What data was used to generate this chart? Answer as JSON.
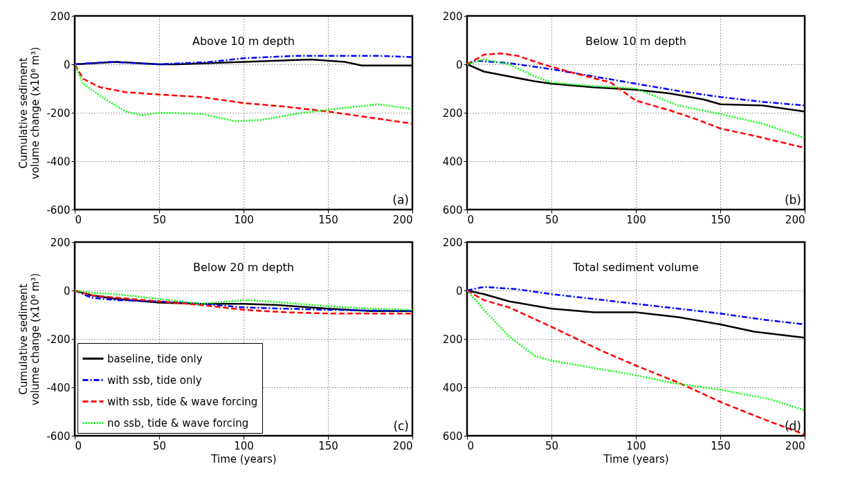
{
  "chart_data": [
    {
      "type": "line",
      "title": "Above 10 m depth",
      "ylabel": "Cumulative sediment volume change (x10⁶ m³)",
      "annotations": [
        "(a)"
      ],
      "xlim": [
        0,
        200
      ],
      "xticks": [
        0,
        50,
        100,
        150,
        200
      ],
      "ylim": [
        -600,
        200
      ],
      "yticks": [
        -600,
        -400,
        -200,
        0,
        200
      ],
      "grid": true,
      "series": [
        {
          "color": "#000000",
          "line_style": "solid",
          "x": [
            0,
            25,
            50,
            60,
            80,
            100,
            120,
            140,
            160,
            170,
            185,
            200
          ],
          "values": [
            0,
            10,
            0,
            0,
            5,
            10,
            15,
            20,
            10,
            -5,
            -5,
            -5
          ]
        },
        {
          "color": "#0000ff",
          "line_style": "dashdot",
          "x": [
            0,
            20,
            50,
            80,
            100,
            130,
            150,
            180,
            200
          ],
          "values": [
            0,
            10,
            0,
            10,
            25,
            35,
            35,
            35,
            30
          ]
        },
        {
          "color": "#ff0000",
          "line_style": "dashed",
          "x": [
            0,
            5,
            15,
            30,
            50,
            75,
            100,
            125,
            150,
            175,
            200
          ],
          "values": [
            0,
            -60,
            -95,
            -115,
            -125,
            -135,
            -160,
            -175,
            -195,
            -220,
            -245
          ]
        },
        {
          "color": "#00ff00",
          "line_style": "dotted",
          "x": [
            0,
            5,
            15,
            30,
            40,
            50,
            75,
            95,
            110,
            135,
            160,
            180,
            190,
            200
          ],
          "values": [
            0,
            -80,
            -130,
            -195,
            -210,
            -200,
            -205,
            -235,
            -230,
            -200,
            -180,
            -165,
            -175,
            -185
          ]
        }
      ]
    },
    {
      "type": "line",
      "title": "Below 10 m depth",
      "annotations": [
        "(b)"
      ],
      "xlim": [
        0,
        200
      ],
      "xticks": [
        0,
        50,
        100,
        150,
        200
      ],
      "ylim": [
        -600,
        200
      ],
      "yticks": [
        {
          "value": -600,
          "label": "600"
        },
        {
          "value": -400,
          "label": "400"
        },
        {
          "value": -200,
          "label": "200"
        },
        0,
        200
      ],
      "grid": true,
      "series": [
        {
          "color": "#000000",
          "line_style": "solid",
          "x": [
            0,
            10,
            25,
            40,
            50,
            75,
            100,
            120,
            140,
            150,
            175,
            200
          ],
          "values": [
            0,
            -30,
            -50,
            -70,
            -80,
            -95,
            -105,
            -120,
            -145,
            -165,
            -170,
            -195
          ]
        },
        {
          "color": "#0000ff",
          "line_style": "dashdot",
          "x": [
            0,
            5,
            25,
            50,
            75,
            100,
            125,
            150,
            175,
            200
          ],
          "values": [
            0,
            15,
            5,
            -20,
            -50,
            -80,
            -110,
            -135,
            -155,
            -170
          ]
        },
        {
          "color": "#ff0000",
          "line_style": "dashed",
          "x": [
            0,
            10,
            20,
            30,
            45,
            60,
            85,
            100,
            120,
            135,
            150,
            170,
            185,
            200
          ],
          "values": [
            0,
            40,
            45,
            35,
            0,
            -30,
            -75,
            -150,
            -190,
            -225,
            -265,
            -295,
            -320,
            -345
          ]
        },
        {
          "color": "#00ff00",
          "line_style": "dotted",
          "x": [
            0,
            10,
            25,
            40,
            50,
            75,
            100,
            125,
            150,
            175,
            200
          ],
          "values": [
            0,
            20,
            0,
            -50,
            -75,
            -90,
            -100,
            -170,
            -205,
            -245,
            -305
          ]
        }
      ]
    },
    {
      "type": "line",
      "title": "Below 20 m depth",
      "xlabel": "Time (years)",
      "ylabel": "Cumulative sediment volume change (x10⁶ m³)",
      "annotations": [
        "(c)"
      ],
      "xlim": [
        0,
        200
      ],
      "xticks": [
        0,
        50,
        100,
        150,
        200
      ],
      "ylim": [
        -600,
        200
      ],
      "yticks": [
        -600,
        -400,
        -200,
        0,
        200
      ],
      "grid": true,
      "legend": "bottom left",
      "series": [
        {
          "name": "baseline, tide only",
          "color": "#000000",
          "line_style": "solid",
          "x": [
            0,
            10,
            25,
            50,
            75,
            100,
            120,
            150,
            175,
            200
          ],
          "values": [
            0,
            -20,
            -35,
            -50,
            -55,
            -55,
            -60,
            -75,
            -85,
            -85
          ]
        },
        {
          "name": "with ssb, tide only",
          "color": "#0000ff",
          "line_style": "dashdot",
          "x": [
            0,
            10,
            25,
            50,
            75,
            100,
            150,
            200
          ],
          "values": [
            0,
            -30,
            -40,
            -45,
            -55,
            -70,
            -80,
            -85
          ]
        },
        {
          "name": "with ssb, tide & wave forcing",
          "color": "#ff0000",
          "line_style": "dashed",
          "x": [
            0,
            10,
            25,
            50,
            75,
            100,
            125,
            150,
            200
          ],
          "values": [
            0,
            -20,
            -30,
            -45,
            -60,
            -80,
            -90,
            -95,
            -95
          ]
        },
        {
          "name": "no ssb, tide & wave forcing",
          "color": "#00ff00",
          "line_style": "dotted",
          "x": [
            0,
            10,
            25,
            50,
            75,
            100,
            115,
            150,
            175,
            200
          ],
          "values": [
            0,
            -10,
            -15,
            -35,
            -55,
            -40,
            -45,
            -65,
            -75,
            -80
          ]
        }
      ]
    },
    {
      "type": "line",
      "title": "Total sediment volume",
      "xlabel": "Time (years)",
      "annotations": [
        "(d)"
      ],
      "xlim": [
        0,
        200
      ],
      "xticks": [
        0,
        50,
        100,
        150,
        200
      ],
      "ylim": [
        -600,
        200
      ],
      "yticks": [
        {
          "value": -600,
          "label": "600"
        },
        {
          "value": -400,
          "label": "400"
        },
        {
          "value": -200,
          "label": "200"
        },
        0,
        200
      ],
      "grid": true,
      "series": [
        {
          "color": "#000000",
          "line_style": "solid",
          "x": [
            0,
            10,
            25,
            50,
            75,
            100,
            125,
            150,
            170,
            200
          ],
          "values": [
            0,
            -15,
            -45,
            -75,
            -90,
            -90,
            -110,
            -140,
            -170,
            -195
          ]
        },
        {
          "color": "#0000ff",
          "line_style": "dashdot",
          "x": [
            0,
            10,
            30,
            50,
            75,
            100,
            125,
            150,
            175,
            200
          ],
          "values": [
            0,
            15,
            5,
            -15,
            -35,
            -55,
            -75,
            -95,
            -120,
            -140
          ]
        },
        {
          "color": "#ff0000",
          "line_style": "dashed",
          "x": [
            0,
            10,
            25,
            50,
            65,
            80,
            100,
            125,
            150,
            175,
            200
          ],
          "values": [
            0,
            -40,
            -70,
            -150,
            -200,
            -250,
            -310,
            -380,
            -460,
            -530,
            -595
          ]
        },
        {
          "color": "#00ff00",
          "line_style": "dotted",
          "x": [
            0,
            10,
            25,
            40,
            50,
            75,
            100,
            120,
            150,
            180,
            200
          ],
          "values": [
            0,
            -80,
            -190,
            -270,
            -290,
            -320,
            -350,
            -380,
            -410,
            -450,
            -495
          ]
        }
      ]
    }
  ]
}
